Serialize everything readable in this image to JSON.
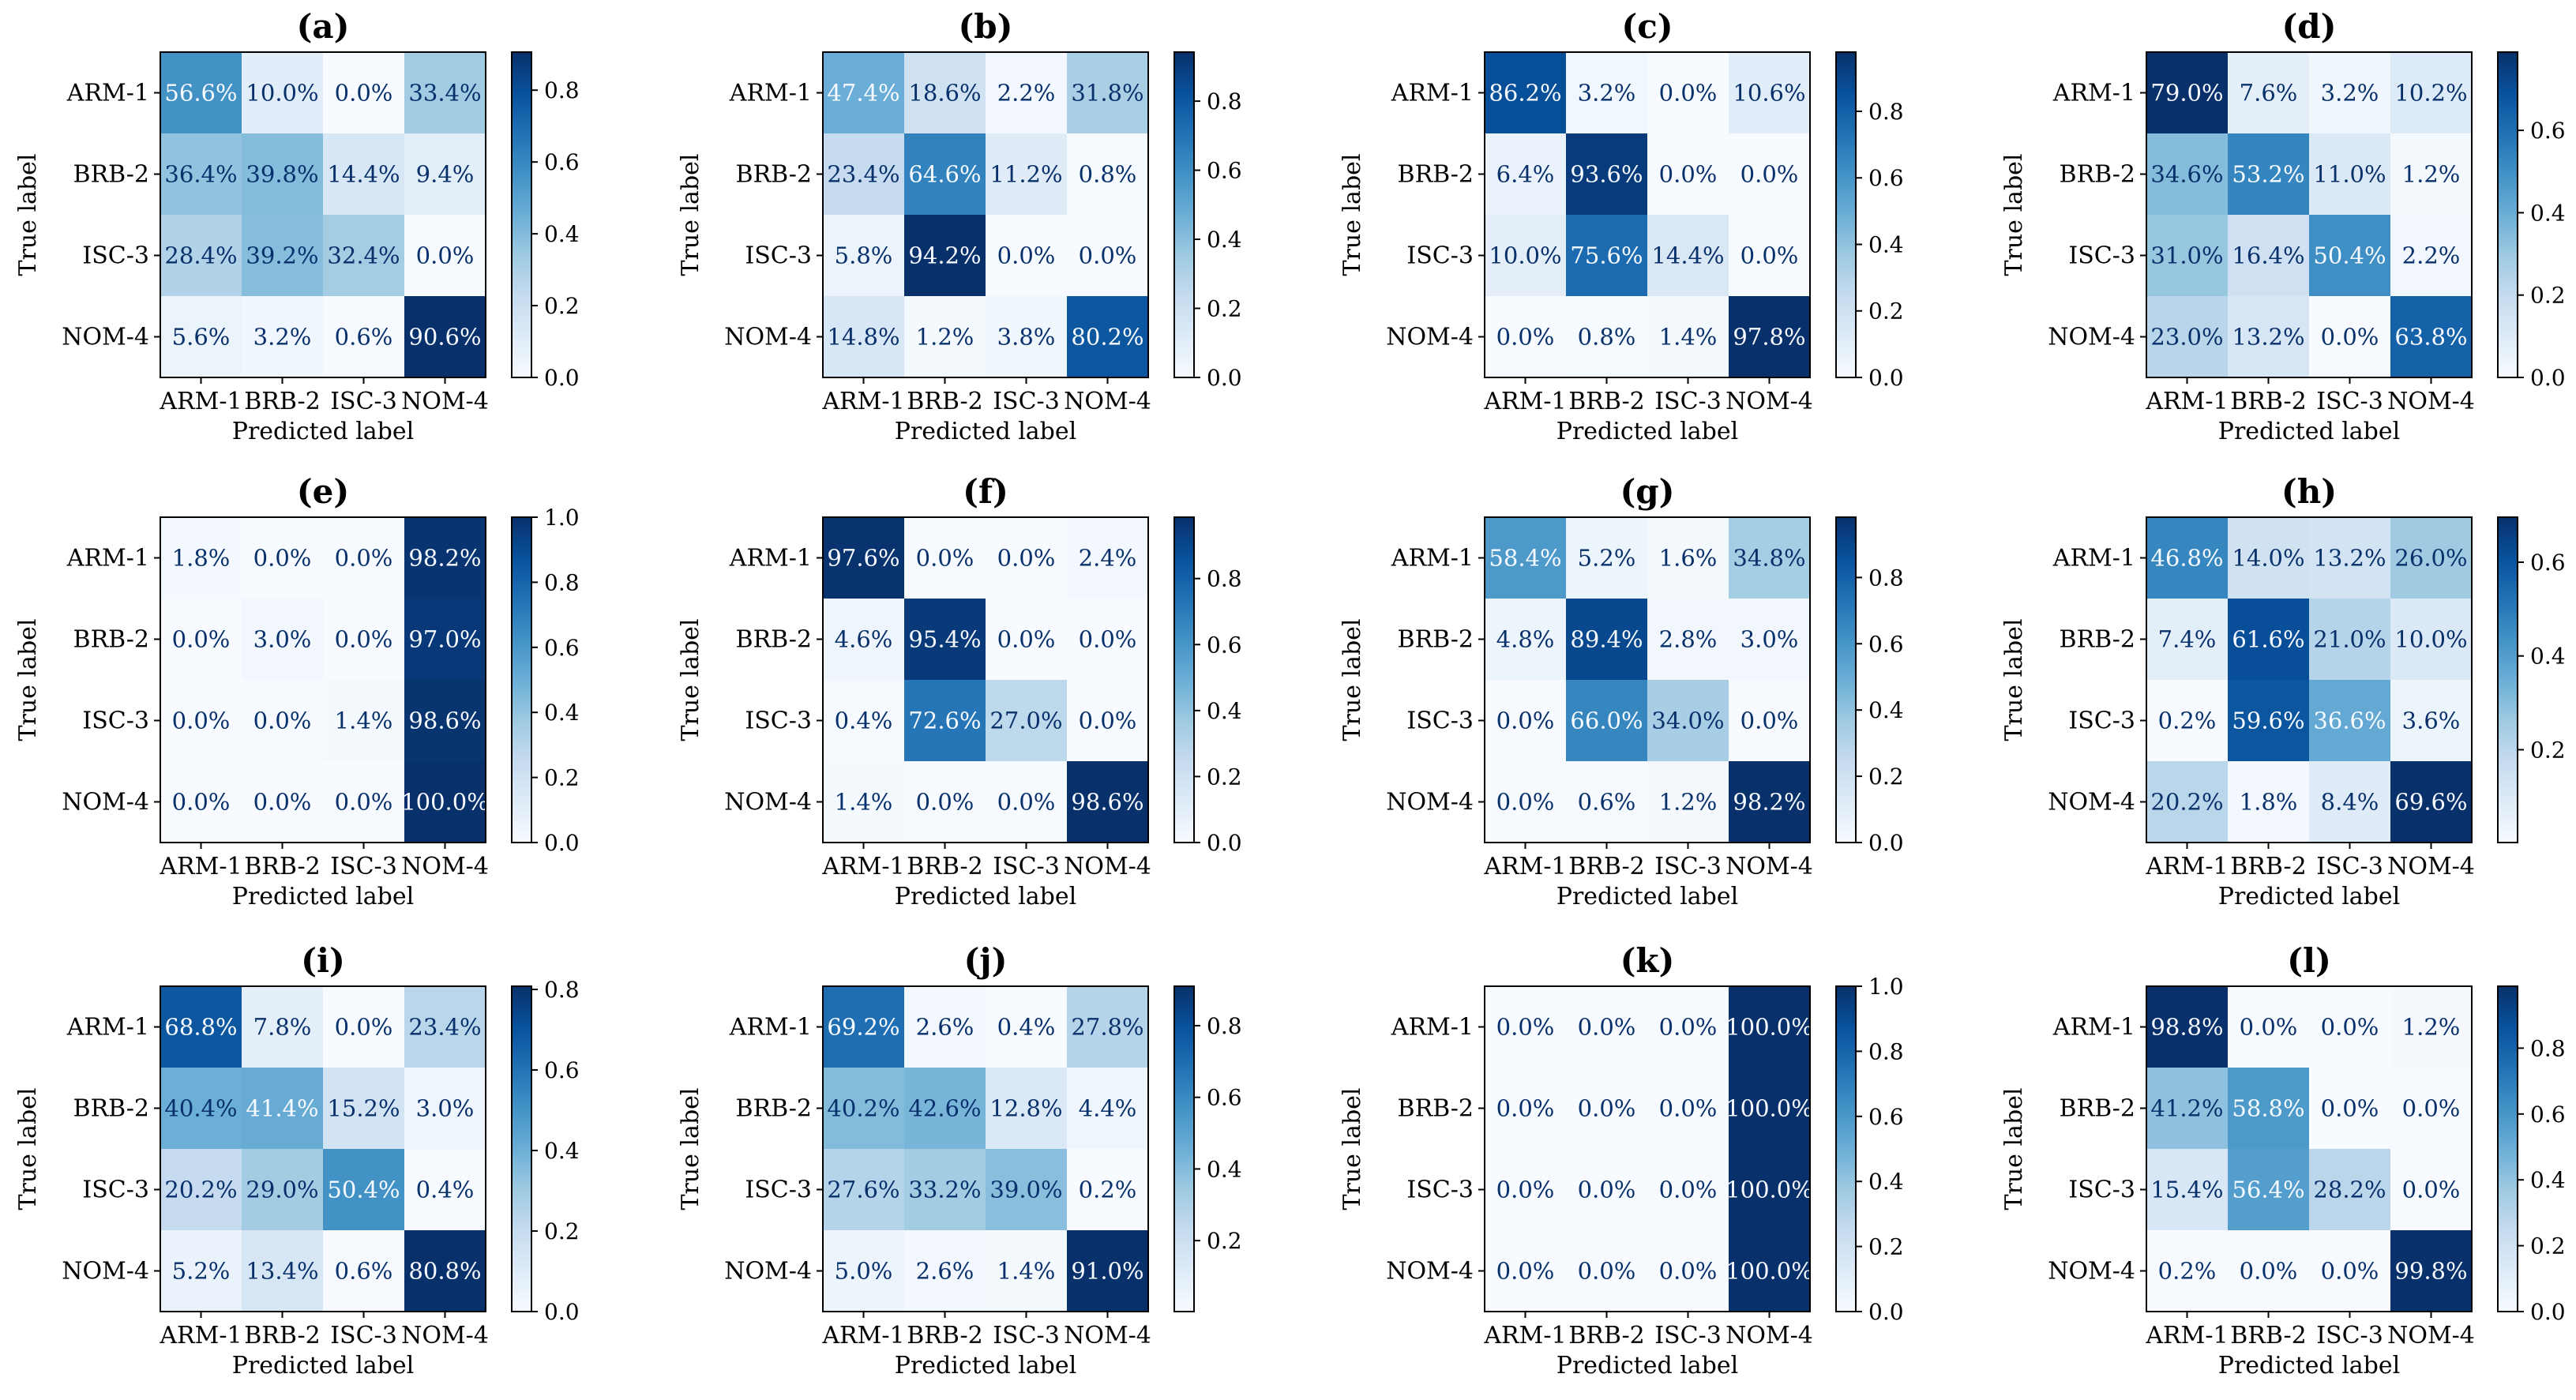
{
  "chart_data": {
    "type": "heatmap",
    "title": "",
    "class_labels": [
      "ARM-1",
      "BRB-2",
      "ISC-3",
      "NOM-4"
    ],
    "xlabel": "Predicted label",
    "ylabel": "True label",
    "panels": [
      {
        "label": "(a)",
        "values": [
          [
            56.6,
            10.0,
            0.0,
            33.4
          ],
          [
            36.4,
            39.8,
            14.4,
            9.4
          ],
          [
            28.4,
            39.2,
            32.4,
            0.0
          ],
          [
            5.6,
            3.2,
            0.6,
            90.6
          ]
        ],
        "colorbar": {
          "min": 0.0,
          "max": 0.906,
          "ticks": [
            "0.0",
            "0.2",
            "0.4",
            "0.6",
            "0.8"
          ]
        }
      },
      {
        "label": "(b)",
        "values": [
          [
            47.4,
            18.6,
            2.2,
            31.8
          ],
          [
            23.4,
            64.6,
            11.2,
            0.8
          ],
          [
            5.8,
            94.2,
            0.0,
            0.0
          ],
          [
            14.8,
            1.2,
            3.8,
            80.2
          ]
        ],
        "colorbar": {
          "min": 0.0,
          "max": 0.942,
          "ticks": [
            "0.0",
            "0.2",
            "0.4",
            "0.6",
            "0.8"
          ]
        }
      },
      {
        "label": "(c)",
        "values": [
          [
            86.2,
            3.2,
            0.0,
            10.6
          ],
          [
            6.4,
            93.6,
            0.0,
            0.0
          ],
          [
            10.0,
            75.6,
            14.4,
            0.0
          ],
          [
            0.0,
            0.8,
            1.4,
            97.8
          ]
        ],
        "colorbar": {
          "min": 0.0,
          "max": 0.978,
          "ticks": [
            "0.0",
            "0.2",
            "0.4",
            "0.6",
            "0.8"
          ]
        }
      },
      {
        "label": "(d)",
        "values": [
          [
            79.0,
            7.6,
            3.2,
            10.2
          ],
          [
            34.6,
            53.2,
            11.0,
            1.2
          ],
          [
            31.0,
            16.4,
            50.4,
            2.2
          ],
          [
            23.0,
            13.2,
            0.0,
            63.8
          ]
        ],
        "colorbar": {
          "min": 0.0,
          "max": 0.79,
          "ticks": [
            "0.0",
            "0.2",
            "0.4",
            "0.6"
          ]
        }
      },
      {
        "label": "(e)",
        "values": [
          [
            1.8,
            0.0,
            0.0,
            98.2
          ],
          [
            0.0,
            3.0,
            0.0,
            97.0
          ],
          [
            0.0,
            0.0,
            1.4,
            98.6
          ],
          [
            0.0,
            0.0,
            0.0,
            100.0
          ]
        ],
        "colorbar": {
          "min": 0.0,
          "max": 1.0,
          "ticks": [
            "0.0",
            "0.2",
            "0.4",
            "0.6",
            "0.8",
            "1.0"
          ]
        }
      },
      {
        "label": "(f)",
        "values": [
          [
            97.6,
            0.0,
            0.0,
            2.4
          ],
          [
            4.6,
            95.4,
            0.0,
            0.0
          ],
          [
            0.4,
            72.6,
            27.0,
            0.0
          ],
          [
            1.4,
            0.0,
            0.0,
            98.6
          ]
        ],
        "colorbar": {
          "min": 0.0,
          "max": 0.986,
          "ticks": [
            "0.0",
            "0.2",
            "0.4",
            "0.6",
            "0.8"
          ]
        }
      },
      {
        "label": "(g)",
        "values": [
          [
            58.4,
            5.2,
            1.6,
            34.8
          ],
          [
            4.8,
            89.4,
            2.8,
            3.0
          ],
          [
            0.0,
            66.0,
            34.0,
            0.0
          ],
          [
            0.0,
            0.6,
            1.2,
            98.2
          ]
        ],
        "colorbar": {
          "min": 0.0,
          "max": 0.982,
          "ticks": [
            "0.0",
            "0.2",
            "0.4",
            "0.6",
            "0.8"
          ]
        }
      },
      {
        "label": "(h)",
        "values": [
          [
            46.8,
            14.0,
            13.2,
            26.0
          ],
          [
            7.4,
            61.6,
            21.0,
            10.0
          ],
          [
            0.2,
            59.6,
            36.6,
            3.6
          ],
          [
            20.2,
            1.8,
            8.4,
            69.6
          ]
        ],
        "colorbar": {
          "min": 0.002,
          "max": 0.696,
          "ticks": [
            "0.2",
            "0.4",
            "0.6"
          ]
        }
      },
      {
        "label": "(i)",
        "values": [
          [
            68.8,
            7.8,
            0.0,
            23.4
          ],
          [
            40.4,
            41.4,
            15.2,
            3.0
          ],
          [
            20.2,
            29.0,
            50.4,
            0.4
          ],
          [
            5.2,
            13.4,
            0.6,
            80.8
          ]
        ],
        "colorbar": {
          "min": 0.0,
          "max": 0.808,
          "ticks": [
            "0.0",
            "0.2",
            "0.4",
            "0.6",
            "0.8"
          ]
        }
      },
      {
        "label": "(j)",
        "values": [
          [
            69.2,
            2.6,
            0.4,
            27.8
          ],
          [
            40.2,
            42.6,
            12.8,
            4.4
          ],
          [
            27.6,
            33.2,
            39.0,
            0.2
          ],
          [
            5.0,
            2.6,
            1.4,
            91.0
          ]
        ],
        "colorbar": {
          "min": 0.002,
          "max": 0.91,
          "ticks": [
            "0.2",
            "0.4",
            "0.6",
            "0.8"
          ]
        }
      },
      {
        "label": "(k)",
        "values": [
          [
            0.0,
            0.0,
            0.0,
            100.0
          ],
          [
            0.0,
            0.0,
            0.0,
            100.0
          ],
          [
            0.0,
            0.0,
            0.0,
            100.0
          ],
          [
            0.0,
            0.0,
            0.0,
            100.0
          ]
        ],
        "colorbar": {
          "min": 0.0,
          "max": 1.0,
          "ticks": [
            "0.0",
            "0.2",
            "0.4",
            "0.6",
            "0.8",
            "1.0"
          ]
        }
      },
      {
        "label": "(l)",
        "values": [
          [
            98.8,
            0.0,
            0.0,
            1.2
          ],
          [
            41.2,
            58.8,
            0.0,
            0.0
          ],
          [
            15.4,
            56.4,
            28.2,
            0.0
          ],
          [
            0.2,
            0.0,
            0.0,
            99.8
          ]
        ],
        "colorbar": {
          "min": 0.0,
          "max": 0.988,
          "ticks": [
            "0.0",
            "0.2",
            "0.4",
            "0.6",
            "0.8"
          ]
        }
      }
    ],
    "colormap": [
      "#f7fbff",
      "#deebf7",
      "#c6dbef",
      "#9ecae1",
      "#6baed6",
      "#4292c6",
      "#2171b5",
      "#08519c",
      "#08306b"
    ],
    "text_colors": {
      "light_cell": "#08306b",
      "dark_cell": "#f7fbff"
    }
  }
}
